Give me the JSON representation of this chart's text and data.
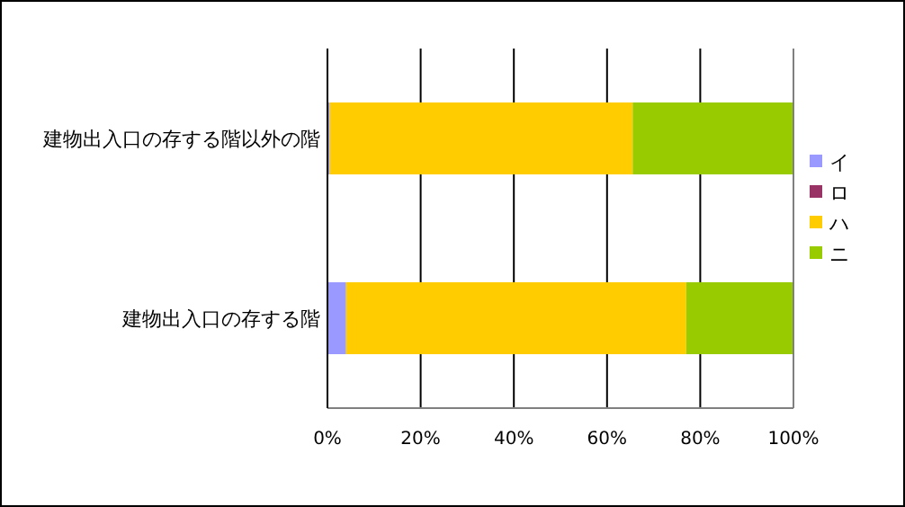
{
  "chart_data": {
    "type": "bar",
    "orientation": "horizontal",
    "stacked": true,
    "categories": [
      "建物出入口の存する階以外の階",
      "建物出入口の存する階"
    ],
    "series": [
      {
        "name": "イ",
        "color": "#9999ff",
        "values": [
          0.5,
          4
        ]
      },
      {
        "name": "ロ",
        "color": "#993366",
        "values": [
          0,
          0
        ]
      },
      {
        "name": "ハ",
        "color": "#ffcc00",
        "values": [
          65,
          73
        ]
      },
      {
        "name": "ニ",
        "color": "#99cc00",
        "values": [
          34.5,
          23
        ]
      }
    ],
    "xlim": [
      0,
      100
    ],
    "xticks": [
      {
        "value": 0,
        "label": "0%"
      },
      {
        "value": 20,
        "label": "20%"
      },
      {
        "value": 40,
        "label": "40%"
      },
      {
        "value": 60,
        "label": "60%"
      },
      {
        "value": 80,
        "label": "80%"
      },
      {
        "value": 100,
        "label": "100%"
      }
    ],
    "grid": "x",
    "legend": "right"
  }
}
